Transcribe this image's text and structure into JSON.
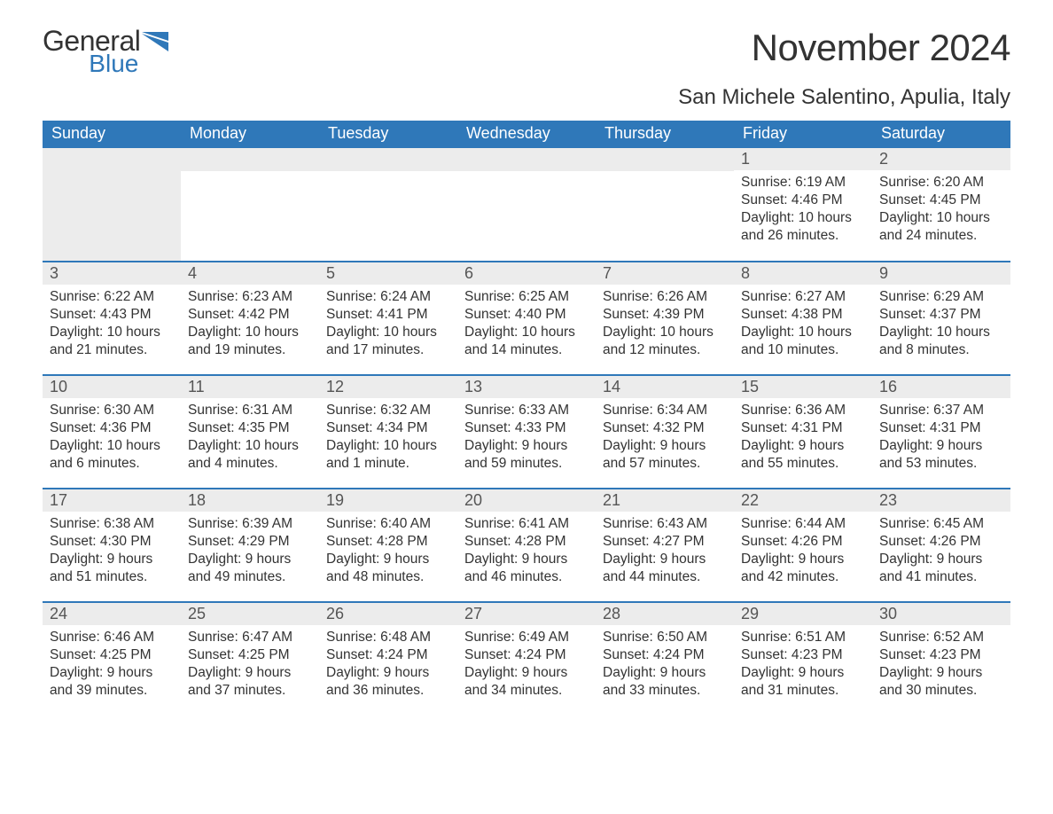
{
  "logo": {
    "line1": "General",
    "line2": "Blue",
    "brand_color": "#2f78b9",
    "text_color": "#333333"
  },
  "title": "November 2024",
  "location": "San Michele Salentino, Apulia, Italy",
  "colors": {
    "header_bg": "#2f78b9",
    "header_text": "#ffffff",
    "daynum_bg": "#ececec",
    "row_divider": "#2f78b9",
    "body_text": "#333333",
    "page_bg": "#ffffff"
  },
  "fonts": {
    "family": "Arial",
    "title_size_pt": 32,
    "location_size_pt": 18,
    "header_size_pt": 14,
    "daynum_size_pt": 14,
    "body_size_pt": 12
  },
  "weekdays": [
    "Sunday",
    "Monday",
    "Tuesday",
    "Wednesday",
    "Thursday",
    "Friday",
    "Saturday"
  ],
  "leading_blanks": 5,
  "days": [
    {
      "n": "1",
      "sunrise": "Sunrise: 6:19 AM",
      "sunset": "Sunset: 4:46 PM",
      "daylight": "Daylight: 10 hours and 26 minutes."
    },
    {
      "n": "2",
      "sunrise": "Sunrise: 6:20 AM",
      "sunset": "Sunset: 4:45 PM",
      "daylight": "Daylight: 10 hours and 24 minutes."
    },
    {
      "n": "3",
      "sunrise": "Sunrise: 6:22 AM",
      "sunset": "Sunset: 4:43 PM",
      "daylight": "Daylight: 10 hours and 21 minutes."
    },
    {
      "n": "4",
      "sunrise": "Sunrise: 6:23 AM",
      "sunset": "Sunset: 4:42 PM",
      "daylight": "Daylight: 10 hours and 19 minutes."
    },
    {
      "n": "5",
      "sunrise": "Sunrise: 6:24 AM",
      "sunset": "Sunset: 4:41 PM",
      "daylight": "Daylight: 10 hours and 17 minutes."
    },
    {
      "n": "6",
      "sunrise": "Sunrise: 6:25 AM",
      "sunset": "Sunset: 4:40 PM",
      "daylight": "Daylight: 10 hours and 14 minutes."
    },
    {
      "n": "7",
      "sunrise": "Sunrise: 6:26 AM",
      "sunset": "Sunset: 4:39 PM",
      "daylight": "Daylight: 10 hours and 12 minutes."
    },
    {
      "n": "8",
      "sunrise": "Sunrise: 6:27 AM",
      "sunset": "Sunset: 4:38 PM",
      "daylight": "Daylight: 10 hours and 10 minutes."
    },
    {
      "n": "9",
      "sunrise": "Sunrise: 6:29 AM",
      "sunset": "Sunset: 4:37 PM",
      "daylight": "Daylight: 10 hours and 8 minutes."
    },
    {
      "n": "10",
      "sunrise": "Sunrise: 6:30 AM",
      "sunset": "Sunset: 4:36 PM",
      "daylight": "Daylight: 10 hours and 6 minutes."
    },
    {
      "n": "11",
      "sunrise": "Sunrise: 6:31 AM",
      "sunset": "Sunset: 4:35 PM",
      "daylight": "Daylight: 10 hours and 4 minutes."
    },
    {
      "n": "12",
      "sunrise": "Sunrise: 6:32 AM",
      "sunset": "Sunset: 4:34 PM",
      "daylight": "Daylight: 10 hours and 1 minute."
    },
    {
      "n": "13",
      "sunrise": "Sunrise: 6:33 AM",
      "sunset": "Sunset: 4:33 PM",
      "daylight": "Daylight: 9 hours and 59 minutes."
    },
    {
      "n": "14",
      "sunrise": "Sunrise: 6:34 AM",
      "sunset": "Sunset: 4:32 PM",
      "daylight": "Daylight: 9 hours and 57 minutes."
    },
    {
      "n": "15",
      "sunrise": "Sunrise: 6:36 AM",
      "sunset": "Sunset: 4:31 PM",
      "daylight": "Daylight: 9 hours and 55 minutes."
    },
    {
      "n": "16",
      "sunrise": "Sunrise: 6:37 AM",
      "sunset": "Sunset: 4:31 PM",
      "daylight": "Daylight: 9 hours and 53 minutes."
    },
    {
      "n": "17",
      "sunrise": "Sunrise: 6:38 AM",
      "sunset": "Sunset: 4:30 PM",
      "daylight": "Daylight: 9 hours and 51 minutes."
    },
    {
      "n": "18",
      "sunrise": "Sunrise: 6:39 AM",
      "sunset": "Sunset: 4:29 PM",
      "daylight": "Daylight: 9 hours and 49 minutes."
    },
    {
      "n": "19",
      "sunrise": "Sunrise: 6:40 AM",
      "sunset": "Sunset: 4:28 PM",
      "daylight": "Daylight: 9 hours and 48 minutes."
    },
    {
      "n": "20",
      "sunrise": "Sunrise: 6:41 AM",
      "sunset": "Sunset: 4:28 PM",
      "daylight": "Daylight: 9 hours and 46 minutes."
    },
    {
      "n": "21",
      "sunrise": "Sunrise: 6:43 AM",
      "sunset": "Sunset: 4:27 PM",
      "daylight": "Daylight: 9 hours and 44 minutes."
    },
    {
      "n": "22",
      "sunrise": "Sunrise: 6:44 AM",
      "sunset": "Sunset: 4:26 PM",
      "daylight": "Daylight: 9 hours and 42 minutes."
    },
    {
      "n": "23",
      "sunrise": "Sunrise: 6:45 AM",
      "sunset": "Sunset: 4:26 PM",
      "daylight": "Daylight: 9 hours and 41 minutes."
    },
    {
      "n": "24",
      "sunrise": "Sunrise: 6:46 AM",
      "sunset": "Sunset: 4:25 PM",
      "daylight": "Daylight: 9 hours and 39 minutes."
    },
    {
      "n": "25",
      "sunrise": "Sunrise: 6:47 AM",
      "sunset": "Sunset: 4:25 PM",
      "daylight": "Daylight: 9 hours and 37 minutes."
    },
    {
      "n": "26",
      "sunrise": "Sunrise: 6:48 AM",
      "sunset": "Sunset: 4:24 PM",
      "daylight": "Daylight: 9 hours and 36 minutes."
    },
    {
      "n": "27",
      "sunrise": "Sunrise: 6:49 AM",
      "sunset": "Sunset: 4:24 PM",
      "daylight": "Daylight: 9 hours and 34 minutes."
    },
    {
      "n": "28",
      "sunrise": "Sunrise: 6:50 AM",
      "sunset": "Sunset: 4:24 PM",
      "daylight": "Daylight: 9 hours and 33 minutes."
    },
    {
      "n": "29",
      "sunrise": "Sunrise: 6:51 AM",
      "sunset": "Sunset: 4:23 PM",
      "daylight": "Daylight: 9 hours and 31 minutes."
    },
    {
      "n": "30",
      "sunrise": "Sunrise: 6:52 AM",
      "sunset": "Sunset: 4:23 PM",
      "daylight": "Daylight: 9 hours and 30 minutes."
    }
  ]
}
